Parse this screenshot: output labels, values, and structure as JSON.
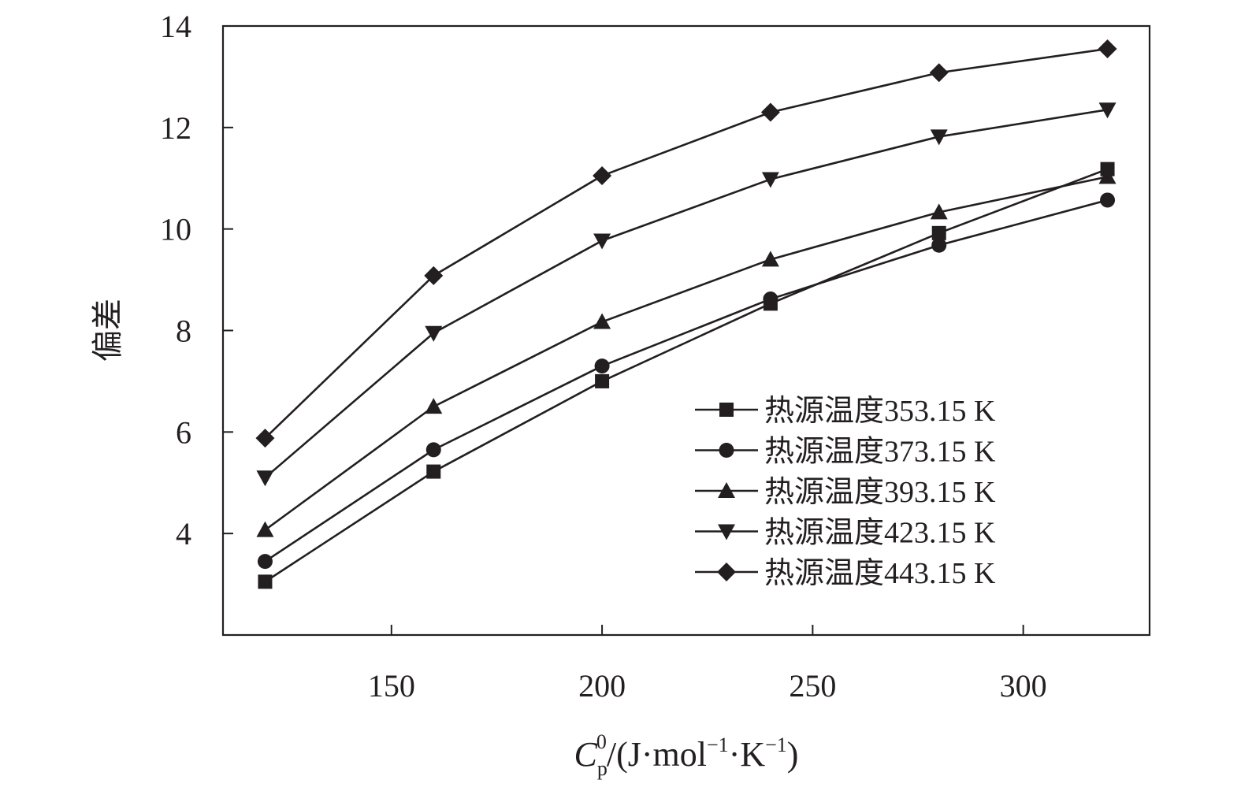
{
  "chart_data": {
    "type": "line",
    "title": "",
    "ylabel": "偏差",
    "xlabel": {
      "main": "C",
      "sub": "p",
      "sup": "0",
      "unit_pre": "/(J·mol",
      "unit_exp1": "−1",
      "unit_mid": "·K",
      "unit_exp2": "−1",
      "unit_post": ")"
    },
    "xlim": [
      110,
      330
    ],
    "ylim": [
      2,
      14
    ],
    "xticks": [
      150,
      200,
      250,
      300
    ],
    "yticks": [
      4,
      6,
      8,
      10,
      12,
      14
    ],
    "grid": false,
    "legend_position": "lower-right",
    "x": [
      120,
      160,
      200,
      240,
      280,
      320
    ],
    "series": [
      {
        "name": "热源温度353.15 K",
        "marker": "square",
        "values": [
          3.05,
          5.22,
          7.0,
          8.53,
          9.92,
          11.18
        ]
      },
      {
        "name": "热源温度373.15 K",
        "marker": "circle",
        "values": [
          3.45,
          5.65,
          7.3,
          8.62,
          9.68,
          10.57
        ]
      },
      {
        "name": "热源温度393.15 K",
        "marker": "triangle-up",
        "values": [
          4.07,
          6.5,
          8.17,
          9.4,
          10.33,
          11.03
        ]
      },
      {
        "name": "热源温度423.15 K",
        "marker": "triangle-down",
        "values": [
          5.1,
          7.95,
          9.77,
          10.98,
          11.82,
          12.35
        ]
      },
      {
        "name": "热源温度443.15 K",
        "marker": "diamond",
        "values": [
          5.88,
          9.08,
          11.05,
          12.3,
          13.08,
          13.55
        ]
      }
    ],
    "colors": {
      "line": "#231f20",
      "marker": "#231f20"
    }
  }
}
